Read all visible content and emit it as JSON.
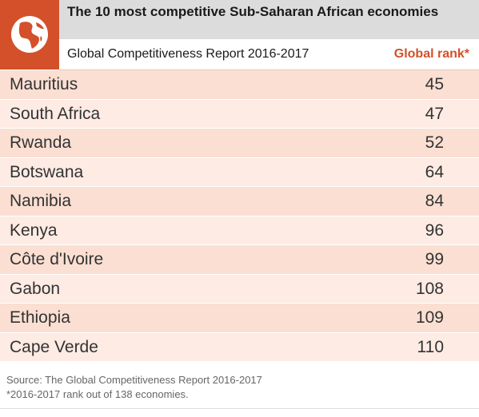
{
  "header": {
    "title": "The 10 most competitive Sub-Saharan African economies",
    "subtitle": "Global Competitiveness Report 2016-2017",
    "column_label": "Global rank*",
    "logo_icon": "globe-icon"
  },
  "chart_data": {
    "type": "table",
    "title": "The 10 most competitive Sub-Saharan African economies",
    "subtitle": "Global Competitiveness Report 2016-2017",
    "columns": [
      "",
      "Global rank*"
    ],
    "rows": [
      {
        "country": "Mauritius",
        "rank": "45"
      },
      {
        "country": "South Africa",
        "rank": "47"
      },
      {
        "country": "Rwanda",
        "rank": "52"
      },
      {
        "country": "Botswana",
        "rank": "64"
      },
      {
        "country": "Namibia",
        "rank": "84"
      },
      {
        "country": "Kenya",
        "rank": "96"
      },
      {
        "country": "Côte d'Ivoire",
        "rank": "99"
      },
      {
        "country": "Gabon",
        "rank": "108"
      },
      {
        "country": "Ethiopia",
        "rank": "109"
      },
      {
        "country": "Cape Verde",
        "rank": "110"
      }
    ]
  },
  "footer": {
    "source": "Source: The Global Competitiveness Report 2016-2017",
    "note": "*2016-2017 rank out of 138 economies."
  },
  "colors": {
    "accent": "#d3502a",
    "row_a": "#fbdfd3",
    "row_b": "#fdebe4",
    "title_bg": "#dcdcdc"
  }
}
